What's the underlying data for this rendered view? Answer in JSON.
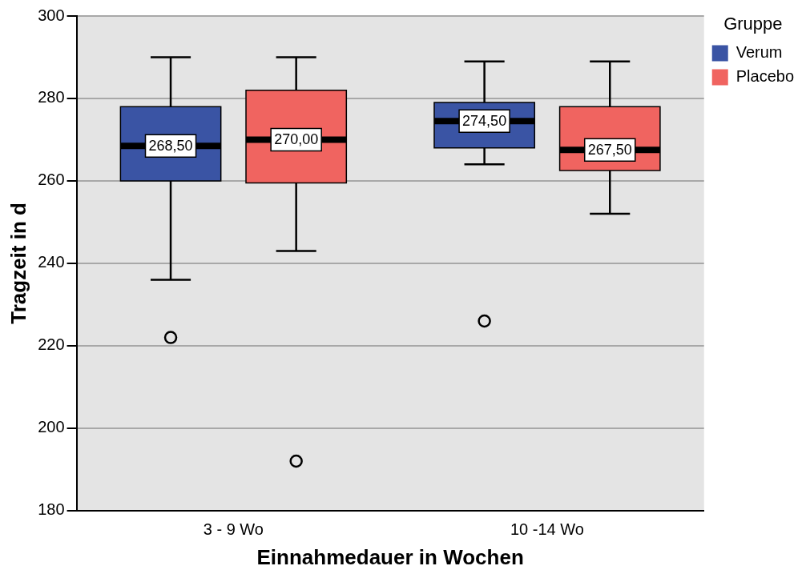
{
  "chart_data": {
    "type": "box",
    "xlabel": "Einnahmedauer in Wochen",
    "ylabel": "Tragzeit in d",
    "legend_title": "Gruppe",
    "legend": "right",
    "grid": "y",
    "categories": [
      "3 - 9 Wo",
      "10 -14 Wo"
    ],
    "ylim": [
      180,
      300
    ],
    "yticks": [
      180,
      200,
      220,
      240,
      260,
      280,
      300
    ],
    "series": [
      {
        "name": "Verum",
        "color": "#3a54a4",
        "boxes": [
          {
            "low": 236,
            "q1": 260,
            "median": 268.5,
            "q3": 278,
            "high": 290,
            "outliers": [
              222
            ]
          },
          {
            "low": 264,
            "q1": 268,
            "median": 274.5,
            "q3": 279,
            "high": 289,
            "outliers": [
              226
            ]
          }
        ],
        "value_labels": [
          "268,50",
          "274,50"
        ]
      },
      {
        "name": "Placebo",
        "color": "#f06460",
        "boxes": [
          {
            "low": 243,
            "q1": 259.5,
            "median": 270,
            "q3": 282,
            "high": 290,
            "outliers": [
              192
            ]
          },
          {
            "low": 252,
            "q1": 262.5,
            "median": 267.5,
            "q3": 278,
            "high": 289
          }
        ],
        "value_labels": [
          "270,00",
          "267,50"
        ]
      }
    ]
  }
}
